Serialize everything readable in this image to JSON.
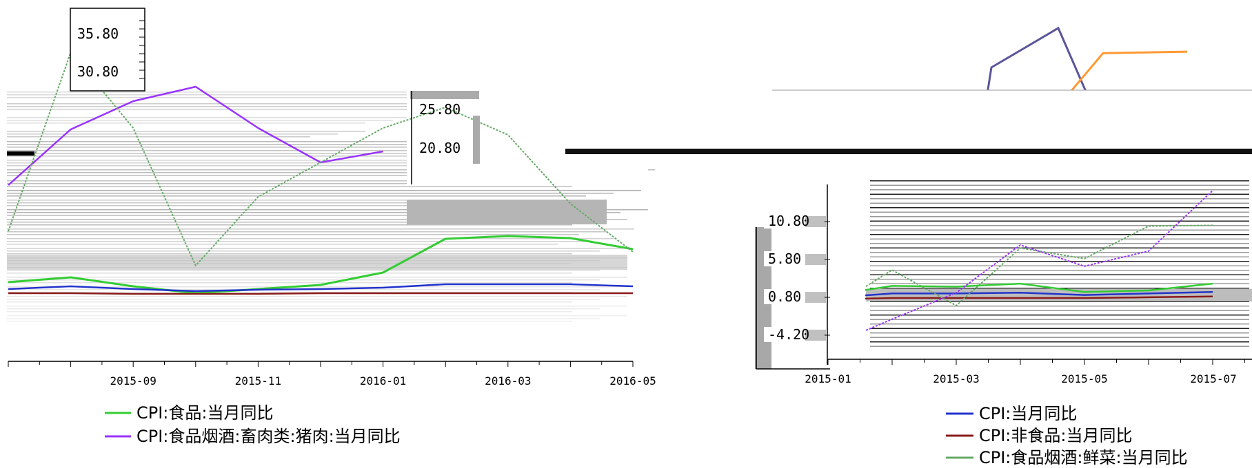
{
  "chart_data": [
    {
      "type": "line",
      "panel": "left",
      "title": "",
      "xlabel": "",
      "ylabel": "",
      "x_ticks": [
        "2015-09",
        "2015-11",
        "2016-01",
        "2016-03",
        "2016-05"
      ],
      "x": [
        "2015-07",
        "2015-08",
        "2015-09",
        "2015-10",
        "2015-11",
        "2015-12",
        "2016-01",
        "2016-02",
        "2016-03",
        "2016-04",
        "2016-05"
      ],
      "y_ticks": [
        "35.80",
        "30.80",
        "25.80",
        "20.80"
      ],
      "grid": false,
      "legend_placement": "bottom-left",
      "series": [
        {
          "name": "CPI:食品:当月同比",
          "color": "#33cc33",
          "values": [
            2.6,
            3.3,
            2.0,
            1.0,
            1.6,
            2.2,
            4.0,
            8.9,
            9.3,
            9.0,
            7.4
          ]
        },
        {
          "name": "CPI:食品烟酒:畜肉类:猪肉:当月同比",
          "color": "#9933ff",
          "values": [
            16.7,
            24.8,
            28.9,
            31.0,
            25.0,
            20.0,
            21.6,
            null,
            null,
            null,
            null
          ]
        },
        {
          "name": "",
          "color": "#2233cc",
          "values": [
            1.6,
            2.0,
            1.6,
            1.3,
            1.5,
            1.6,
            1.8,
            2.3,
            2.3,
            2.3,
            2.0
          ]
        },
        {
          "name": "",
          "color": "#8b1a1a",
          "values": [
            1.0,
            1.0,
            0.9,
            0.9,
            0.9,
            1.0,
            1.0,
            1.0,
            1.0,
            1.0,
            1.0
          ]
        },
        {
          "name": "",
          "color": "#66aa66",
          "values": [
            10.0,
            36.0,
            25.0,
            5.0,
            15.0,
            20.0,
            25.0,
            28.0,
            24.0,
            14.0,
            7.0
          ]
        }
      ]
    },
    {
      "type": "line",
      "panel": "right",
      "title": "",
      "xlabel": "",
      "ylabel": "",
      "x_ticks": [
        "2015-01",
        "2015-03",
        "2015-05",
        "2015-07"
      ],
      "x": [
        "2015-01",
        "2015-02",
        "2015-03",
        "2015-04",
        "2015-05",
        "2015-06",
        "2015-07",
        "2015-08"
      ],
      "y_ticks": [
        "10.80",
        "5.80",
        "0.80",
        "-4.20"
      ],
      "grid": false,
      "legend_placement": "bottom-right",
      "series": [
        {
          "name": "CPI:当月同比",
          "color": "#2233cc",
          "values": [
            0.8,
            1.4,
            1.4,
            1.5,
            1.2,
            1.4,
            1.6,
            1.9
          ]
        },
        {
          "name": "CPI:非食品:当月同比",
          "color": "#8b1a1a",
          "values": [
            0.6,
            0.8,
            0.8,
            0.8,
            0.8,
            0.9,
            1.0,
            1.0
          ]
        },
        {
          "name": "CPI:食品烟酒:鲜菜:当月同比",
          "color": "#66aa66",
          "values": [
            -0.8,
            4.5,
            -0.2,
            7.4,
            6.0,
            10.3,
            10.4,
            15.3
          ]
        },
        {
          "name": "",
          "color": "#33cc33",
          "values": [
            1.1,
            2.4,
            2.3,
            2.7,
            1.6,
            1.8,
            2.7,
            3.3
          ]
        },
        {
          "name": "",
          "color": "#9933ff",
          "values": [
            -5.6,
            -2.0,
            1.5,
            7.8,
            5.0,
            7.0,
            15.0,
            16.7
          ]
        }
      ]
    },
    {
      "type": "line",
      "panel": "top-right-overflow",
      "title": "",
      "xlabel": "",
      "ylabel": "",
      "series": [
        {
          "name": "",
          "color": "#5a559a",
          "values": [
            22.0,
            30.0,
            35.5,
            24.0
          ]
        },
        {
          "name": "",
          "color": "#ff9933",
          "values": [
            24.0,
            32.0,
            32.2
          ]
        }
      ]
    }
  ]
}
